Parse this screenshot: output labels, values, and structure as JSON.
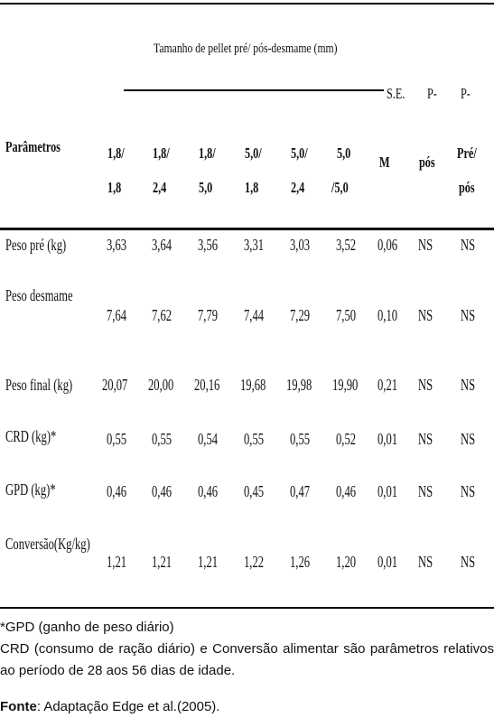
{
  "table": {
    "group_header": "Tamanho de pellet pré/ pós-desmame (mm)",
    "param_header": "Parâmetros",
    "col_headers": [
      {
        "l1": "1,8/",
        "l2": "1,8"
      },
      {
        "l1": "1,8/",
        "l2": "2,4"
      },
      {
        "l1": "1,8/",
        "l2": "5,0"
      },
      {
        "l1": "5,0/",
        "l2": "1,8"
      },
      {
        "l1": "5,0/",
        "l2": "2,4"
      },
      {
        "l1": "5,0",
        "l2": "/5,0"
      }
    ],
    "se_header": {
      "top": "S.E.",
      "bottom": "M"
    },
    "p_pos_header": {
      "top": "P-",
      "bottom": "pós"
    },
    "p_prepos_header": {
      "top": "P-",
      "l1": "Pré/",
      "l2": "pós"
    },
    "rows": [
      {
        "label": "Peso pré (kg)",
        "values": [
          "3,63",
          "3,64",
          "3,56",
          "3,31",
          "3,03",
          "3,52"
        ],
        "sem": "0,06",
        "p_pos": "NS",
        "p_prepos": "NS"
      },
      {
        "label": "Peso desmame",
        "values": [
          "7,64",
          "7,62",
          "7,79",
          "7,44",
          "7,29",
          "7,50"
        ],
        "sem": "0,10",
        "p_pos": "NS",
        "p_prepos": "NS"
      },
      {
        "label": "Peso final (kg)",
        "values": [
          "20,07",
          "20,00",
          "20,16",
          "19,68",
          "19,98",
          "19,90"
        ],
        "sem": "0,21",
        "p_pos": "NS",
        "p_prepos": "NS"
      },
      {
        "label": "CRD (kg)*",
        "values": [
          "0,55",
          "0,55",
          "0,54",
          "0,55",
          "0,55",
          "0,52"
        ],
        "sem": "0,01",
        "p_pos": "NS",
        "p_prepos": "NS"
      },
      {
        "label": "GPD (kg)*",
        "values": [
          "0,46",
          "0,46",
          "0,46",
          "0,45",
          "0,47",
          "0,46"
        ],
        "sem": "0,01",
        "p_pos": "NS",
        "p_prepos": "NS"
      },
      {
        "label": "Conversão(Kg/kg)",
        "values": [
          "1,21",
          "1,21",
          "1,21",
          "1,22",
          "1,26",
          "1,20"
        ],
        "sem": "0,01",
        "p_pos": "NS",
        "p_prepos": "NS"
      }
    ]
  },
  "footnotes": {
    "line1": "*GPD (ganho de peso diário)",
    "line2": "CRD (consumo de ração diário) e Conversão alimentar são parâmetros relativos ao período de 28 aos 56 dias de idade.",
    "source_label": "Fonte",
    "source_text": ": Adaptação Edge et al.(2005)."
  }
}
